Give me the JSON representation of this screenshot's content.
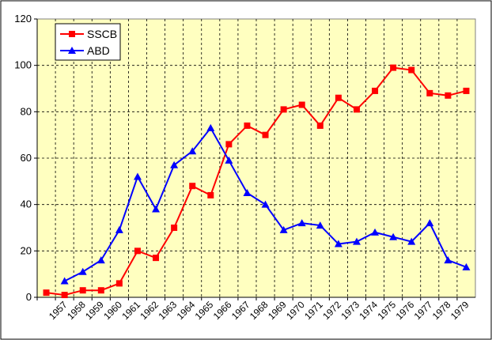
{
  "chart_data": {
    "type": "line",
    "categories": [
      null,
      "1957",
      "1958",
      "1959",
      "1960",
      "1961",
      "1962",
      "1963",
      "1964",
      "1965",
      "1966",
      "1967",
      "1968",
      "1969",
      "1970",
      "1971",
      "1972",
      "1973",
      "1974",
      "1975",
      "1976",
      "1977",
      "1978",
      "1979"
    ],
    "series": [
      {
        "name": "SSCB",
        "color": "#ff0000",
        "marker": "square",
        "values": [
          2,
          1,
          3,
          3,
          6,
          20,
          17,
          30,
          48,
          44,
          66,
          74,
          70,
          81,
          83,
          74,
          86,
          81,
          89,
          99,
          98,
          88,
          87,
          89
        ]
      },
      {
        "name": "ABD",
        "color": "#0000ff",
        "marker": "triangle",
        "values": [
          null,
          7,
          11,
          16,
          29,
          52,
          38,
          57,
          63,
          73,
          59,
          45,
          40,
          29,
          32,
          31,
          23,
          24,
          28,
          26,
          24,
          32,
          16,
          13
        ]
      }
    ],
    "ylim": [
      0,
      120
    ],
    "yticks": [
      0,
      20,
      40,
      60,
      80,
      100,
      120
    ],
    "grid": true,
    "legend": "top-left"
  }
}
